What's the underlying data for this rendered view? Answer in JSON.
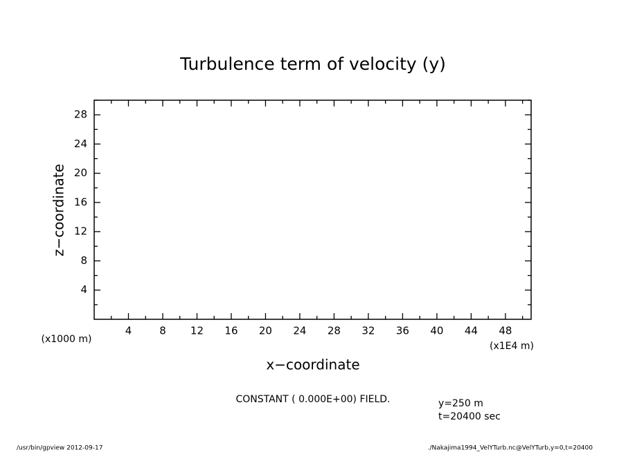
{
  "chart_data": {
    "type": "contour",
    "title": "Turbulence term of velocity (y)",
    "xlabel": "x−coordinate",
    "ylabel": "z−coordinate",
    "x_unit": "(x1E4 m)",
    "y_unit": "(x1000 m)",
    "xlim": [
      0,
      51
    ],
    "ylim": [
      0,
      30
    ],
    "xticks": [
      4,
      8,
      12,
      16,
      20,
      24,
      28,
      32,
      36,
      40,
      44,
      48
    ],
    "yticks": [
      4,
      8,
      12,
      16,
      20,
      24,
      28
    ],
    "xminorticks": [
      2,
      6,
      10,
      14,
      18,
      22,
      26,
      30,
      34,
      38,
      42,
      46,
      50
    ],
    "yminorticks": [
      2,
      6,
      10,
      14,
      18,
      22,
      26,
      30
    ],
    "note": "CONSTANT ( 0.000E+00) FIELD.",
    "info": [
      "y=250 m",
      "t=20400 sec"
    ],
    "footer_left": "/usr/bin/gpview   2012-09-17",
    "footer_right": "./Nakajima1994_VelYTurb.nc@VelYTurb,y=0,t=20400"
  }
}
